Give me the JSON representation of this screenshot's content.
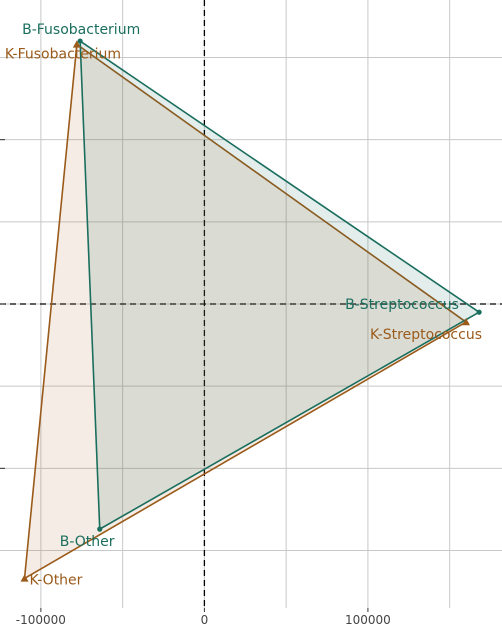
{
  "chart_data": {
    "type": "scatter",
    "title": "",
    "xlabel": "",
    "ylabel": "",
    "xlim": [
      -125000,
      182000
    ],
    "ylim": [
      -185000,
      185000
    ],
    "x_ticks": [
      -100000,
      0,
      100000
    ],
    "x_tick_labels": [
      "-100000",
      "0",
      "100000"
    ],
    "y_ticks": [
      -100000,
      0,
      100000
    ],
    "grid": true,
    "zero_lines": "dashed",
    "series": [
      {
        "name": "B",
        "color": "#1a6e5e",
        "fill": "#1a6e5e",
        "fill_opacity": 0.12,
        "points": [
          {
            "label": "B-Fusobacterium",
            "x": -76000,
            "y": 160000
          },
          {
            "label": "B-Streptococcus",
            "x": 168000,
            "y": -5000
          },
          {
            "label": "B-Other",
            "x": -64000,
            "y": -137000
          }
        ]
      },
      {
        "name": "K",
        "color": "#9a5a1a",
        "fill": "#b87a4a",
        "fill_opacity": 0.14,
        "points": [
          {
            "label": "K-Fusobacterium",
            "x": -78000,
            "y": 158000
          },
          {
            "label": "K-Streptococcus",
            "x": 160000,
            "y": -11000
          },
          {
            "label": "K-Other",
            "x": -110000,
            "y": -167000
          }
        ]
      }
    ]
  }
}
